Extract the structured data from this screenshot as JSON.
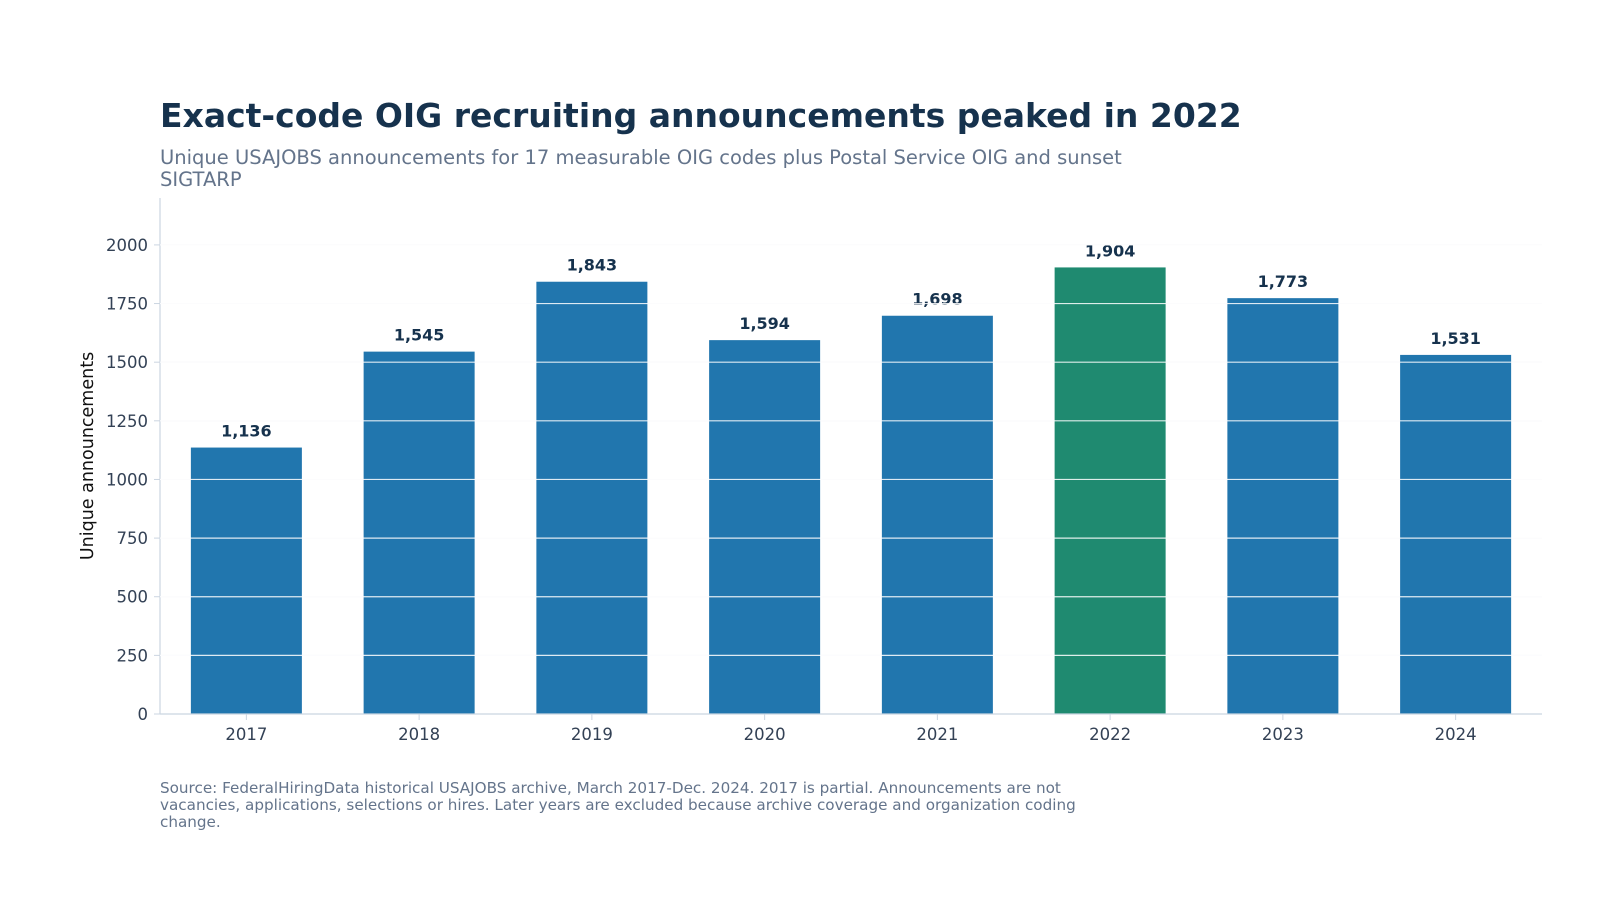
{
  "colors": {
    "bar": "#2176ae",
    "highlight": "#1f8a70",
    "title": "#16324d",
    "muted": "#64748b",
    "axis": "#cbd5e1",
    "grid": "#e8ecf1",
    "tick_text": "#334155",
    "value_label": "#16324d"
  },
  "chart_data": {
    "type": "bar",
    "title": "Exact-code OIG recruiting announcements peaked in 2022",
    "subtitle": "Unique USAJOBS announcements for 17 measurable OIG codes plus Postal Service OIG and sunset SIGTARP",
    "xlabel": "",
    "ylabel": "Unique announcements",
    "categories": [
      "2017",
      "2018",
      "2019",
      "2020",
      "2021",
      "2022",
      "2023",
      "2024"
    ],
    "values": [
      1136,
      1545,
      1843,
      1594,
      1698,
      1904,
      1773,
      1531
    ],
    "value_labels": [
      "1,136",
      "1,545",
      "1,843",
      "1,594",
      "1,698",
      "1,904",
      "1,773",
      "1,531"
    ],
    "highlight_category": "2022",
    "ylim": [
      0,
      2200
    ],
    "yticks": [
      0,
      250,
      500,
      750,
      1000,
      1250,
      1500,
      1750,
      2000
    ],
    "ytick_labels": [
      "0",
      "250",
      "500",
      "750",
      "1000",
      "1250",
      "1500",
      "1750",
      "2000"
    ],
    "grid": true,
    "legend": "none",
    "footnote": "Source: FederalHiringData historical USAJOBS archive, March 2017-Dec. 2024. 2017 is partial. Announcements are not vacancies, applications, selections or hires. Later years are excluded because archive coverage and organization coding change."
  }
}
